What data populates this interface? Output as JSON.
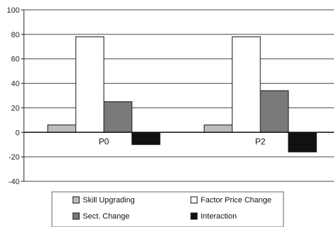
{
  "chart_data": {
    "type": "bar",
    "title": "",
    "xlabel": "",
    "ylabel": "",
    "categories": [
      "P0",
      "P2"
    ],
    "ylim": [
      -40,
      100
    ],
    "yticks": [
      -40,
      -20,
      0,
      20,
      40,
      60,
      80,
      100
    ],
    "grid": true,
    "legend_position": "bottom",
    "series": [
      {
        "name": "Skill Upgrading",
        "values": [
          6,
          6
        ],
        "color": "#bdbdbd"
      },
      {
        "name": "Factor Price Change",
        "values": [
          78,
          78
        ],
        "color": "#ffffff"
      },
      {
        "name": "Sect. Change",
        "values": [
          25,
          34
        ],
        "color": "#7a7a7a"
      },
      {
        "name": "Interaction",
        "values": [
          -10,
          -16
        ],
        "color": "#111111"
      }
    ]
  }
}
